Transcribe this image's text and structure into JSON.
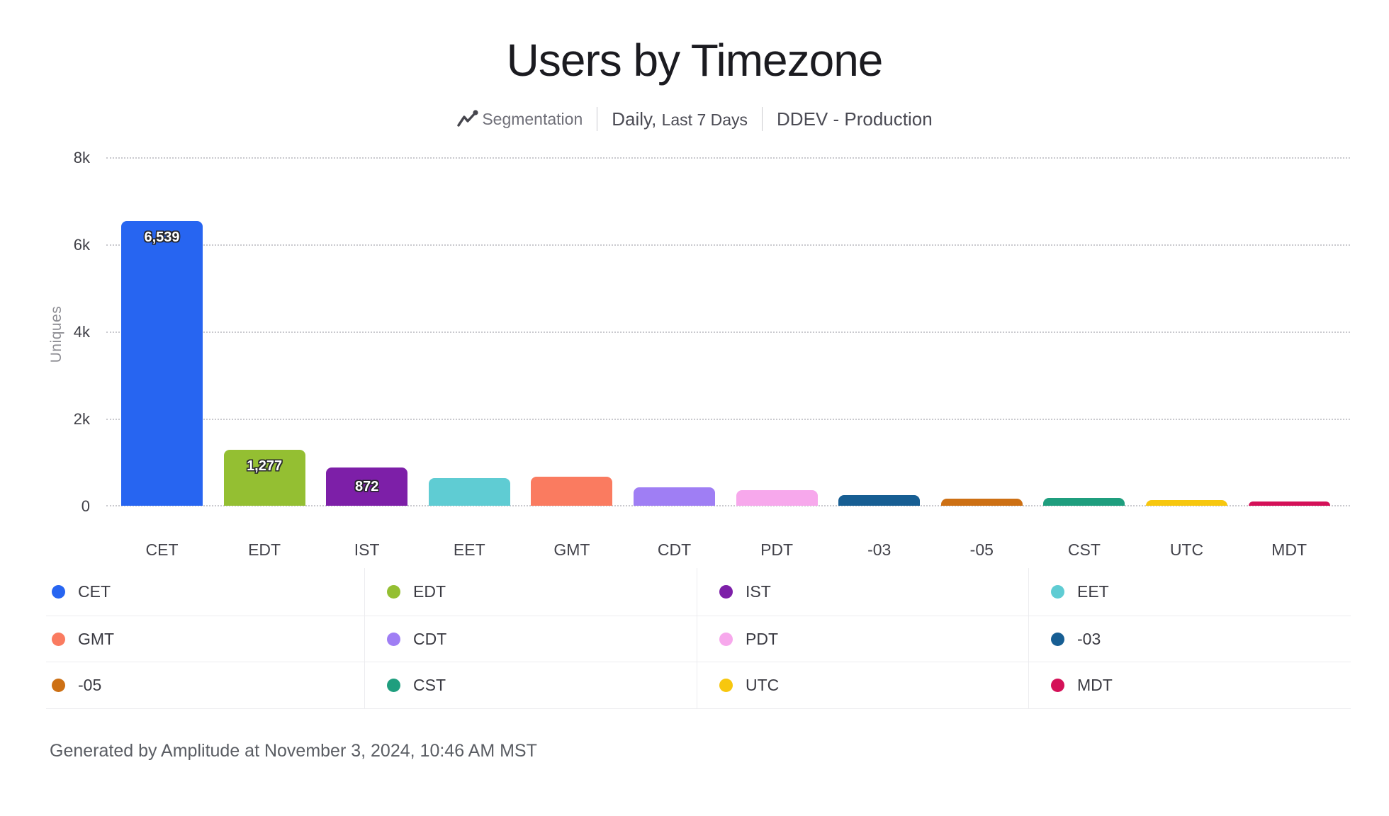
{
  "title": "Users by Timezone",
  "subtitle": {
    "type_label": "Segmentation",
    "granularity": "Daily,",
    "range": "Last 7 Days",
    "project": "DDEV - Production"
  },
  "chart_data": {
    "type": "bar",
    "title": "Users by Timezone",
    "xlabel": "",
    "ylabel": "Uniques",
    "ylim": [
      0,
      8000
    ],
    "grid": "horizontal-dotted",
    "legend_position": "bottom-grid-4-columns",
    "categories": [
      "CET",
      "EDT",
      "IST",
      "EET",
      "GMT",
      "CDT",
      "PDT",
      "-03",
      "-05",
      "CST",
      "UTC",
      "MDT"
    ],
    "values": [
      6539,
      1277,
      872,
      640,
      665,
      430,
      365,
      245,
      165,
      175,
      135,
      105
    ],
    "value_labels": [
      "6,539",
      "1,277",
      "872",
      "",
      "",
      "",
      "",
      "",
      "",
      "",
      "",
      ""
    ],
    "colors": [
      "#2765f1",
      "#94bf32",
      "#7d1fa8",
      "#5fccd3",
      "#fa7b60",
      "#9f7ef4",
      "#f7a8ec",
      "#175e93",
      "#cd7014",
      "#1f9e7e",
      "#f7c70e",
      "#d41158"
    ],
    "yticks": [
      {
        "label": "8k",
        "value": 8000
      },
      {
        "label": "6k",
        "value": 6000
      },
      {
        "label": "4k",
        "value": 4000
      },
      {
        "label": "2k",
        "value": 2000
      },
      {
        "label": "0",
        "value": 0
      }
    ]
  },
  "legend": {
    "items": [
      {
        "label": "CET",
        "color": "#2765f1"
      },
      {
        "label": "EDT",
        "color": "#94bf32"
      },
      {
        "label": "IST",
        "color": "#7d1fa8"
      },
      {
        "label": "EET",
        "color": "#5fccd3"
      },
      {
        "label": "GMT",
        "color": "#fa7b60"
      },
      {
        "label": "CDT",
        "color": "#9f7ef4"
      },
      {
        "label": "PDT",
        "color": "#f7a8ec"
      },
      {
        "label": "-03",
        "color": "#175e93"
      },
      {
        "label": "-05",
        "color": "#cd7014"
      },
      {
        "label": "CST",
        "color": "#1f9e7e"
      },
      {
        "label": "UTC",
        "color": "#f7c70e"
      },
      {
        "label": "MDT",
        "color": "#d41158"
      }
    ]
  },
  "footer": "Generated by Amplitude at November 3, 2024, 10:46 AM MST"
}
